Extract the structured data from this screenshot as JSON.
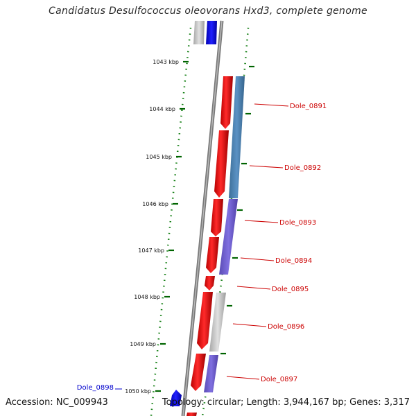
{
  "title": "Candidatus Desulfococcus oleovorans Hxd3, complete genome",
  "accession": "Accession: NC_009943",
  "summary": "Topology: circular; Length: 3,944,167 bp; Genes: 3,317",
  "colors": {
    "forward_cds": "#ff0000",
    "reverse_cds": "#0000ff",
    "backbone": "#808080",
    "tick": "#006400",
    "label_red": "#cc0000",
    "label_blue": "#0000cc",
    "feature_blue": "#4682b4",
    "feature_purple": "#6a5acd",
    "feature_gray": "#c0c0c0"
  },
  "ruler": [
    {
      "label": "1043 kbp"
    },
    {
      "label": "1044 kbp"
    },
    {
      "label": "1045 kbp"
    },
    {
      "label": "1046 kbp"
    },
    {
      "label": "1047 kbp"
    },
    {
      "label": "1048 kbp"
    },
    {
      "label": "1049 kbp"
    },
    {
      "label": "1050 kbp"
    }
  ],
  "gene_labels": [
    {
      "text": "Dole_0891",
      "color": "red"
    },
    {
      "text": "Dole_0892",
      "color": "red"
    },
    {
      "text": "Dole_0893",
      "color": "red"
    },
    {
      "text": "Dole_0894",
      "color": "red"
    },
    {
      "text": "Dole_0895",
      "color": "red"
    },
    {
      "text": "Dole_0896",
      "color": "red"
    },
    {
      "text": "Dole_0897",
      "color": "red"
    },
    {
      "text": "Dole_0898",
      "color": "blue"
    }
  ]
}
